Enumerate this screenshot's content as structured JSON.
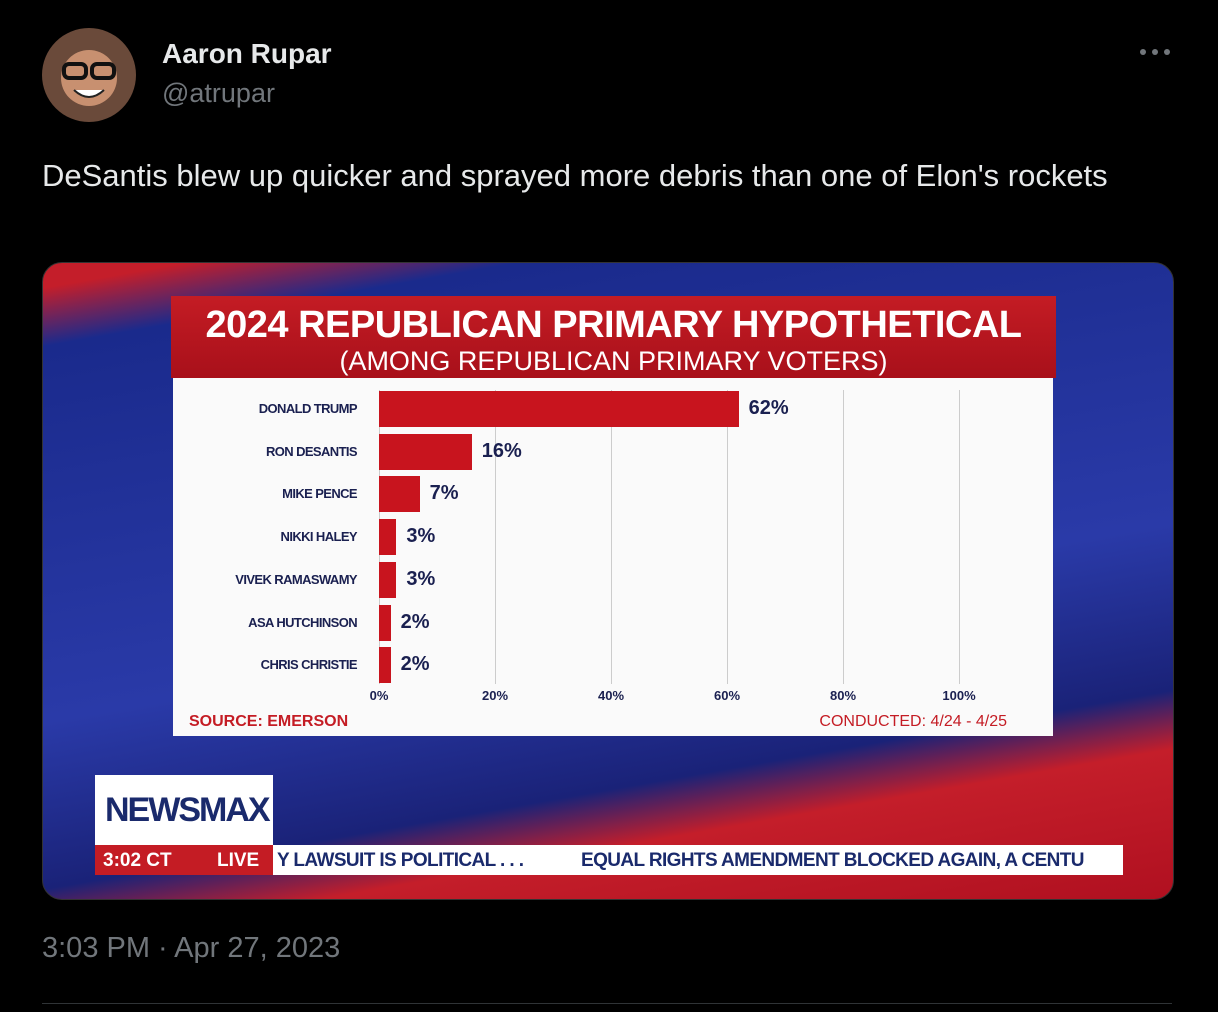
{
  "tweet": {
    "author": "Aaron Rupar",
    "handle": "@atrupar",
    "text": "DeSantis blew up quicker and sprayed more debris than one of Elon's rockets",
    "timestamp": "3:03 PM · Apr 27, 2023"
  },
  "broadcast": {
    "logo": "NEWSMAX",
    "time": "3:02 CT",
    "live": "LIVE",
    "ticker": [
      "Y LAWSUIT IS POLITICAL . . .",
      "EQUAL RIGHTS AMENDMENT BLOCKED AGAIN, A CENTU"
    ]
  },
  "chart_data": {
    "type": "barh",
    "title": "2024 REPUBLICAN PRIMARY HYPOTHETICAL",
    "subtitle": "(AMONG REPUBLICAN PRIMARY VOTERS)",
    "categories": [
      "DONALD TRUMP",
      "RON DESANTIS",
      "MIKE PENCE",
      "NIKKI HALEY",
      "VIVEK RAMASWAMY",
      "ASA HUTCHINSON",
      "CHRIS CHRISTIE"
    ],
    "values": [
      62,
      16,
      7,
      3,
      3,
      2,
      2
    ],
    "value_labels": [
      "62%",
      "16%",
      "7%",
      "3%",
      "3%",
      "2%",
      "2%"
    ],
    "color": "#c8141e",
    "xlim": [
      0,
      100
    ],
    "xticks": [
      {
        "value": 0,
        "label": "0%"
      },
      {
        "value": 20,
        "label": "20%"
      },
      {
        "value": 40,
        "label": "40%"
      },
      {
        "value": 60,
        "label": "60%"
      },
      {
        "value": 80,
        "label": "80%"
      },
      {
        "value": 100,
        "label": "100%"
      }
    ],
    "grid": true,
    "source": "SOURCE: EMERSON",
    "note": "CONDUCTED: 4/24 - 4/25"
  }
}
